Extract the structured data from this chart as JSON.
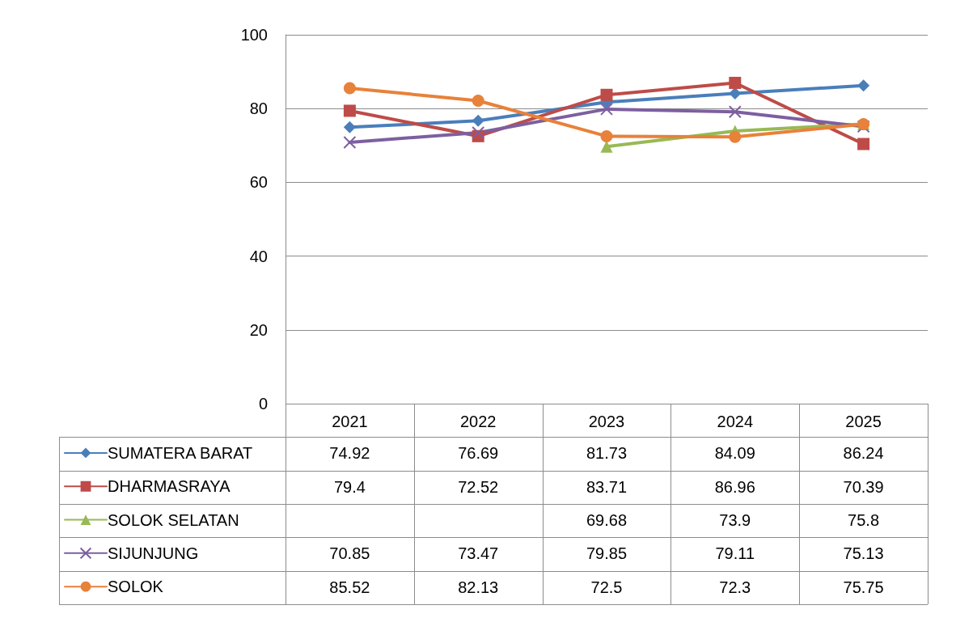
{
  "chart_data": {
    "type": "line",
    "categories": [
      "2021",
      "2022",
      "2023",
      "2024",
      "2025"
    ],
    "series": [
      {
        "name": "SUMATERA BARAT",
        "color": "#4a7ebb",
        "marker": "diamond",
        "values": [
          74.92,
          76.69,
          81.73,
          84.09,
          86.24
        ]
      },
      {
        "name": "DHARMASRAYA",
        "color": "#be4b48",
        "marker": "square",
        "values": [
          79.4,
          72.52,
          83.71,
          86.96,
          70.39
        ]
      },
      {
        "name": "SOLOK SELATAN",
        "color": "#98b954",
        "marker": "triangle",
        "values": [
          null,
          null,
          69.68,
          73.9,
          75.8
        ]
      },
      {
        "name": "SIJUNJUNG",
        "color": "#7d5fa0",
        "marker": "cross",
        "values": [
          70.85,
          73.47,
          79.85,
          79.11,
          75.13
        ]
      },
      {
        "name": "SOLOK",
        "color": "#e8813a",
        "marker": "circle",
        "values": [
          85.52,
          82.13,
          72.5,
          72.3,
          75.75
        ]
      }
    ],
    "ylim": [
      0,
      100
    ],
    "yticks": [
      0,
      20,
      40,
      60,
      80,
      100
    ],
    "grid": "y",
    "legend": "bottom",
    "data_labels": true
  }
}
